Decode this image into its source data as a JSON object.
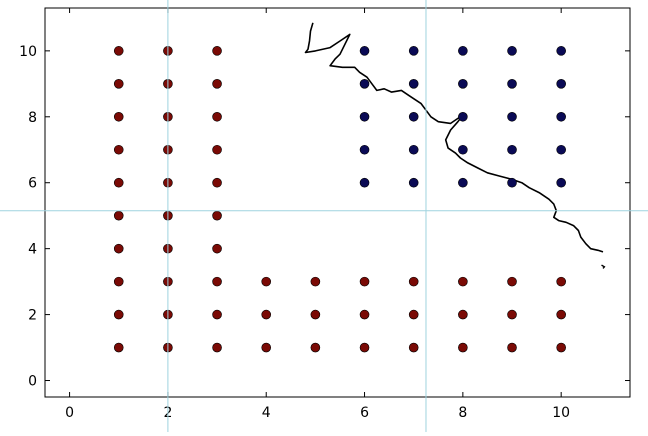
{
  "chart_data": {
    "type": "scatter",
    "title": "",
    "xlabel": "",
    "ylabel": "",
    "xlim": [
      -0.5,
      11.4
    ],
    "ylim": [
      -0.5,
      11.3
    ],
    "xticks": [
      0,
      2,
      4,
      6,
      8,
      10
    ],
    "yticks": [
      0,
      2,
      4,
      6,
      8,
      10
    ],
    "grid": false,
    "legend": "none",
    "series": [
      {
        "color": "#7a0a05",
        "marker": "circle",
        "points": [
          [
            1,
            1
          ],
          [
            1,
            2
          ],
          [
            1,
            3
          ],
          [
            1,
            4
          ],
          [
            1,
            5
          ],
          [
            1,
            6
          ],
          [
            1,
            7
          ],
          [
            1,
            8
          ],
          [
            1,
            9
          ],
          [
            1,
            10
          ],
          [
            2,
            1
          ],
          [
            2,
            2
          ],
          [
            2,
            3
          ],
          [
            2,
            4
          ],
          [
            2,
            5
          ],
          [
            2,
            6
          ],
          [
            2,
            7
          ],
          [
            2,
            8
          ],
          [
            2,
            9
          ],
          [
            2,
            10
          ],
          [
            3,
            1
          ],
          [
            3,
            2
          ],
          [
            3,
            3
          ],
          [
            3,
            4
          ],
          [
            3,
            5
          ],
          [
            3,
            6
          ],
          [
            3,
            7
          ],
          [
            3,
            8
          ],
          [
            3,
            9
          ],
          [
            3,
            10
          ],
          [
            4,
            1
          ],
          [
            4,
            2
          ],
          [
            4,
            3
          ],
          [
            5,
            1
          ],
          [
            5,
            2
          ],
          [
            5,
            3
          ],
          [
            6,
            1
          ],
          [
            6,
            2
          ],
          [
            6,
            3
          ],
          [
            7,
            1
          ],
          [
            7,
            2
          ],
          [
            7,
            3
          ],
          [
            8,
            1
          ],
          [
            8,
            2
          ],
          [
            8,
            3
          ],
          [
            9,
            1
          ],
          [
            9,
            2
          ],
          [
            9,
            3
          ],
          [
            10,
            1
          ],
          [
            10,
            2
          ],
          [
            10,
            3
          ]
        ]
      },
      {
        "color": "#0a0a55",
        "marker": "circle",
        "points": [
          [
            6,
            6
          ],
          [
            6,
            7
          ],
          [
            6,
            8
          ],
          [
            6,
            9
          ],
          [
            6,
            10
          ],
          [
            7,
            6
          ],
          [
            7,
            7
          ],
          [
            7,
            8
          ],
          [
            7,
            9
          ],
          [
            7,
            10
          ],
          [
            8,
            6
          ],
          [
            8,
            7
          ],
          [
            8,
            8
          ],
          [
            8,
            9
          ],
          [
            8,
            10
          ],
          [
            9,
            6
          ],
          [
            9,
            7
          ],
          [
            9,
            8
          ],
          [
            9,
            9
          ],
          [
            9,
            10
          ],
          [
            10,
            6
          ],
          [
            10,
            7
          ],
          [
            10,
            8
          ],
          [
            10,
            9
          ],
          [
            10,
            10
          ]
        ]
      }
    ],
    "boundary_line": {
      "color": "#000000",
      "points": [
        [
          4.95,
          10.85
        ],
        [
          4.9,
          10.6
        ],
        [
          4.88,
          10.3
        ],
        [
          4.85,
          10.05
        ],
        [
          4.8,
          9.95
        ],
        [
          5.0,
          10.0
        ],
        [
          5.3,
          10.1
        ],
        [
          5.5,
          10.3
        ],
        [
          5.7,
          10.5
        ],
        [
          5.6,
          10.2
        ],
        [
          5.5,
          9.9
        ],
        [
          5.4,
          9.75
        ],
        [
          5.3,
          9.55
        ],
        [
          5.55,
          9.5
        ],
        [
          5.8,
          9.5
        ],
        [
          5.9,
          9.35
        ],
        [
          6.05,
          9.2
        ],
        [
          6.15,
          9.0
        ],
        [
          6.25,
          8.8
        ],
        [
          6.4,
          8.85
        ],
        [
          6.55,
          8.75
        ],
        [
          6.75,
          8.8
        ],
        [
          6.9,
          8.65
        ],
        [
          7.0,
          8.55
        ],
        [
          7.15,
          8.4
        ],
        [
          7.25,
          8.2
        ],
        [
          7.35,
          8.0
        ],
        [
          7.5,
          7.85
        ],
        [
          7.75,
          7.8
        ],
        [
          7.9,
          7.95
        ],
        [
          8.0,
          8.05
        ],
        [
          7.9,
          7.85
        ],
        [
          7.75,
          7.6
        ],
        [
          7.65,
          7.3
        ],
        [
          7.7,
          7.05
        ],
        [
          7.85,
          6.9
        ],
        [
          7.95,
          6.75
        ],
        [
          8.1,
          6.6
        ],
        [
          8.3,
          6.45
        ],
        [
          8.5,
          6.3
        ],
        [
          8.75,
          6.2
        ],
        [
          9.0,
          6.1
        ],
        [
          9.2,
          6.0
        ],
        [
          9.35,
          5.85
        ],
        [
          9.55,
          5.7
        ],
        [
          9.75,
          5.5
        ],
        [
          9.85,
          5.35
        ],
        [
          9.9,
          5.15
        ],
        [
          9.85,
          4.95
        ],
        [
          9.95,
          4.85
        ],
        [
          10.1,
          4.8
        ],
        [
          10.25,
          4.7
        ],
        [
          10.35,
          4.55
        ],
        [
          10.4,
          4.35
        ],
        [
          10.5,
          4.15
        ],
        [
          10.6,
          4.0
        ],
        [
          10.75,
          3.95
        ],
        [
          10.85,
          3.9
        ]
      ],
      "extra_tail": [
        [
          10.82,
          3.5
        ],
        [
          10.88,
          3.45
        ],
        [
          10.85,
          3.4
        ]
      ]
    }
  },
  "crosshair": {
    "color": "#9fd3df",
    "x": 2.0,
    "y": 5.15,
    "x2": 7.25
  }
}
